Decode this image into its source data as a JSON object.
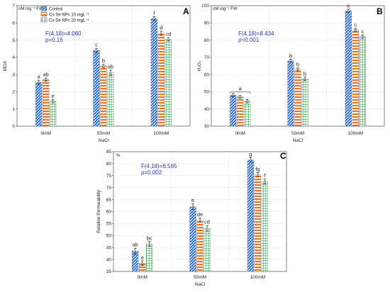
{
  "colors": {
    "control": "#2c6fd6",
    "nps10": "#e07a2a",
    "nps20": "#33a84a",
    "stat_text": "#2233aa"
  },
  "legend": [
    "Control",
    "Cs-Se NPs 10 mgL⁻¹",
    "Cs-Se NPs 20 mgL⁻¹"
  ],
  "chart_data": [
    {
      "type": "bar",
      "panel": "A",
      "unit_label": "nM mg⁻¹ FW",
      "xlabel": "NaCl",
      "ylabel": "MDA",
      "categories": [
        "0mM",
        "50mM",
        "100mM"
      ],
      "ylim": [
        0,
        7
      ],
      "yticks": [
        0,
        1,
        2,
        3,
        4,
        5,
        6,
        7
      ],
      "series": [
        {
          "values": [
            2.55,
            4.4,
            6.25
          ],
          "errors": [
            0.12,
            0.12,
            0.12
          ],
          "letters": [
            "a",
            "c",
            "f"
          ]
        },
        {
          "values": [
            2.7,
            3.5,
            5.4
          ],
          "errors": [
            0.1,
            0.1,
            0.12
          ],
          "letters": [
            "ab",
            "b",
            "d"
          ]
        },
        {
          "values": [
            1.45,
            3.1,
            5.05
          ],
          "errors": [
            0.1,
            0.15,
            0.1
          ],
          "letters": [
            "e",
            "ab",
            "cd"
          ]
        }
      ],
      "stat_lines": [
        "F(4,18)=4.060",
        "p=0.16"
      ]
    },
    {
      "type": "bar",
      "panel": "B",
      "unit_label": "nM mg⁻¹ FW",
      "xlabel": "NaCl",
      "ylabel": "H₂O₂",
      "categories": [
        "0mM",
        "50mM",
        "100mM"
      ],
      "ylim": [
        30,
        100
      ],
      "yticks": [
        30,
        40,
        50,
        60,
        70,
        80,
        90,
        100
      ],
      "series": [
        {
          "values": [
            48,
            68,
            97
          ],
          "errors": [
            1.0,
            1.0,
            1.0
          ],
          "letters": [
            "",
            "b",
            "e"
          ]
        },
        {
          "values": [
            47,
            63,
            86
          ],
          "errors": [
            0.8,
            0.8,
            0.8
          ],
          "letters": [
            "",
            "b",
            "c"
          ]
        },
        {
          "values": [
            44.5,
            57.5,
            82
          ],
          "errors": [
            1.0,
            1.0,
            1.0
          ],
          "letters": [
            "",
            "b",
            "c"
          ]
        }
      ],
      "group_letters": [
        "a",
        "",
        ""
      ],
      "stat_lines": [
        "F(4,18)=8.434",
        "p<0.001"
      ]
    },
    {
      "type": "bar",
      "panel": "C",
      "unit_label": "%",
      "xlabel": "NaCl",
      "ylabel": "Relative Permeability",
      "categories": [
        "0mM",
        "50mM",
        "100mM"
      ],
      "ylim": [
        35,
        85
      ],
      "yticks": [
        35,
        40,
        45,
        50,
        55,
        60,
        65,
        70,
        75,
        80,
        85
      ],
      "series": [
        {
          "values": [
            43.5,
            62,
            81.5
          ],
          "errors": [
            1.2,
            1.2,
            1.0
          ],
          "letters": [
            "ab",
            "e",
            "g"
          ]
        },
        {
          "values": [
            38.5,
            56.5,
            75.5
          ],
          "errors": [
            1.0,
            0.8,
            0.8
          ],
          "letters": [
            "a",
            "de",
            "fg"
          ]
        },
        {
          "values": [
            46.5,
            53,
            72.5
          ],
          "errors": [
            1.0,
            1.2,
            1.0
          ],
          "letters": [
            "bc",
            "cd",
            "f"
          ]
        }
      ],
      "stat_lines": [
        "F(4,18)=6.565",
        "p=0.002"
      ]
    }
  ]
}
